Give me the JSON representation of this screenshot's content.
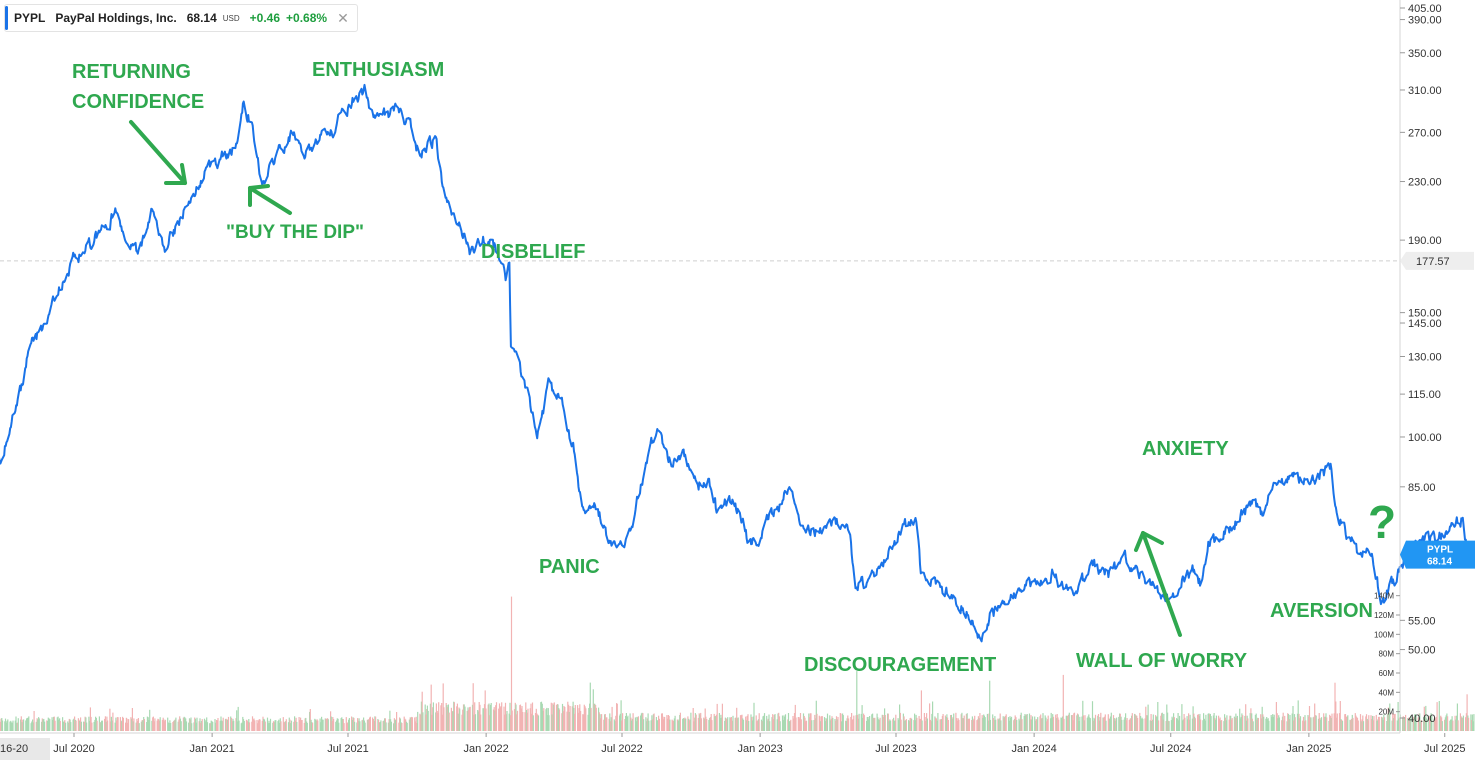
{
  "legend": {
    "symbol": "PYPL",
    "name": "PayPal Holdings, Inc.",
    "price": "68.14",
    "currency": "USD",
    "change": "+0.46",
    "change_pct": "+0.68%",
    "close_glyph": "✕"
  },
  "colors": {
    "line": "#1a73e8",
    "annotation": "#2fa84f",
    "volume_up": "#a8d9b2",
    "volume_down": "#f2b3b3",
    "price_tag": "#2196f3"
  },
  "chart_data": {
    "type": "line",
    "log_scale": true,
    "ylim": [
      38,
      420
    ],
    "y_ticks": [
      405,
      390,
      350,
      310,
      270,
      230,
      190,
      150,
      145,
      130,
      115,
      100,
      85,
      55,
      50,
      40
    ],
    "y_tick_labels": [
      "405.00",
      "390.00",
      "350.00",
      "310.00",
      "270.00",
      "230.00",
      "190.00",
      "150.00",
      "145.00",
      "130.00",
      "115.00",
      "100.00",
      "85.00",
      "55.00",
      "50.00",
      "40.00"
    ],
    "x_tick_labels": [
      "16-20",
      "Jul 2020",
      "Jan 2021",
      "Jul 2021",
      "Jan 2022",
      "Jul 2022",
      "Jan 2023",
      "Jul 2023",
      "Jan 2024",
      "Jul 2024",
      "Jan 2025",
      "Jul 2025"
    ],
    "x_tick_dates": [
      "2020-03-16",
      "2020-07-01",
      "2021-01-01",
      "2021-07-01",
      "2022-01-01",
      "2022-07-01",
      "2023-01-01",
      "2023-07-01",
      "2024-01-01",
      "2024-07-01",
      "2025-01-01",
      "2025-07-01"
    ],
    "x_range": [
      "2020-03-16",
      "2025-10-15"
    ],
    "reference_line": {
      "value": 177.57,
      "label": "177.57"
    },
    "last_price": {
      "value": 68.14,
      "label_symbol": "PYPL",
      "label_value": "68.14"
    },
    "series": [
      {
        "values": [
          [
            "2020-03-16",
            97
          ],
          [
            "2020-03-26",
            92
          ],
          [
            "2020-04-15",
            110
          ],
          [
            "2020-05-05",
            135
          ],
          [
            "2020-05-20",
            142
          ],
          [
            "2020-06-10",
            160
          ],
          [
            "2020-07-01",
            178
          ],
          [
            "2020-07-20",
            187
          ],
          [
            "2020-08-10",
            196
          ],
          [
            "2020-08-25",
            208
          ],
          [
            "2020-09-10",
            188
          ],
          [
            "2020-09-25",
            183
          ],
          [
            "2020-10-12",
            209
          ],
          [
            "2020-10-30",
            187
          ],
          [
            "2020-11-15",
            198
          ],
          [
            "2020-12-05",
            219
          ],
          [
            "2020-12-28",
            240
          ],
          [
            "2021-01-10",
            246
          ],
          [
            "2021-02-01",
            258
          ],
          [
            "2021-02-12",
            298
          ],
          [
            "2021-02-25",
            272
          ],
          [
            "2021-03-08",
            230
          ],
          [
            "2021-03-25",
            245
          ],
          [
            "2021-04-15",
            268
          ],
          [
            "2021-05-05",
            252
          ],
          [
            "2021-05-20",
            260
          ],
          [
            "2021-06-10",
            272
          ],
          [
            "2021-06-25",
            290
          ],
          [
            "2021-07-10",
            300
          ],
          [
            "2021-07-23",
            308
          ],
          [
            "2021-08-05",
            282
          ],
          [
            "2021-08-20",
            285
          ],
          [
            "2021-09-05",
            290
          ],
          [
            "2021-09-20",
            278
          ],
          [
            "2021-10-05",
            250
          ],
          [
            "2021-10-25",
            265
          ],
          [
            "2021-11-05",
            225
          ],
          [
            "2021-11-25",
            200
          ],
          [
            "2021-12-10",
            185
          ],
          [
            "2021-12-28",
            190
          ],
          [
            "2022-01-12",
            185
          ],
          [
            "2022-01-28",
            168
          ],
          [
            "2022-02-01",
            176
          ],
          [
            "2022-02-03",
            135
          ],
          [
            "2022-02-20",
            120
          ],
          [
            "2022-03-10",
            100
          ],
          [
            "2022-03-25",
            118
          ],
          [
            "2022-04-10",
            115
          ],
          [
            "2022-04-28",
            95
          ],
          [
            "2022-05-10",
            78
          ],
          [
            "2022-05-25",
            82
          ],
          [
            "2022-06-10",
            72
          ],
          [
            "2022-06-25",
            70
          ],
          [
            "2022-07-05",
            70
          ],
          [
            "2022-07-20",
            80
          ],
          [
            "2022-08-05",
            95
          ],
          [
            "2022-08-15",
            102
          ],
          [
            "2022-09-05",
            92
          ],
          [
            "2022-09-20",
            95
          ],
          [
            "2022-10-10",
            85
          ],
          [
            "2022-10-25",
            88
          ],
          [
            "2022-11-05",
            78
          ],
          [
            "2022-11-25",
            82
          ],
          [
            "2022-12-15",
            72
          ],
          [
            "2022-12-30",
            71
          ],
          [
            "2023-01-15",
            78
          ],
          [
            "2023-02-10",
            84
          ],
          [
            "2023-02-25",
            76
          ],
          [
            "2023-03-15",
            74
          ],
          [
            "2023-04-10",
            76
          ],
          [
            "2023-04-30",
            74
          ],
          [
            "2023-05-08",
            62
          ],
          [
            "2023-05-25",
            62
          ],
          [
            "2023-06-15",
            66
          ],
          [
            "2023-07-10",
            75
          ],
          [
            "2023-07-28",
            76
          ],
          [
            "2023-08-03",
            65
          ],
          [
            "2023-08-20",
            62
          ],
          [
            "2023-09-10",
            60
          ],
          [
            "2023-09-25",
            58
          ],
          [
            "2023-10-10",
            55
          ],
          [
            "2023-10-25",
            52
          ],
          [
            "2023-11-05",
            56
          ],
          [
            "2023-11-25",
            58
          ],
          [
            "2023-12-15",
            61
          ],
          [
            "2024-01-05",
            62
          ],
          [
            "2024-01-25",
            64
          ],
          [
            "2024-02-10",
            60
          ],
          [
            "2024-02-28",
            61
          ],
          [
            "2024-03-20",
            66
          ],
          [
            "2024-04-10",
            64
          ],
          [
            "2024-04-30",
            68
          ],
          [
            "2024-05-20",
            63
          ],
          [
            "2024-06-10",
            62
          ],
          [
            "2024-06-30",
            58
          ],
          [
            "2024-07-15",
            62
          ],
          [
            "2024-07-30",
            65
          ],
          [
            "2024-08-10",
            62
          ],
          [
            "2024-08-20",
            70
          ],
          [
            "2024-09-05",
            72
          ],
          [
            "2024-09-25",
            76
          ],
          [
            "2024-10-15",
            80
          ],
          [
            "2024-10-30",
            78
          ],
          [
            "2024-11-15",
            84
          ],
          [
            "2024-12-05",
            88
          ],
          [
            "2024-12-25",
            86
          ],
          [
            "2025-01-10",
            88
          ],
          [
            "2025-01-30",
            90
          ],
          [
            "2025-02-05",
            78
          ],
          [
            "2025-02-20",
            73
          ],
          [
            "2025-03-10",
            68
          ],
          [
            "2025-03-25",
            68
          ],
          [
            "2025-04-08",
            58
          ],
          [
            "2025-04-25",
            63
          ],
          [
            "2025-05-10",
            68
          ],
          [
            "2025-05-30",
            72
          ],
          [
            "2025-06-20",
            72
          ],
          [
            "2025-07-10",
            74
          ],
          [
            "2025-07-25",
            77
          ],
          [
            "2025-07-30",
            70
          ],
          [
            "2025-08-15",
            68
          ],
          [
            "2025-08-30",
            70
          ],
          [
            "2025-09-15",
            66
          ],
          [
            "2025-09-30",
            68
          ],
          [
            "2025-10-10",
            68.14
          ]
        ]
      }
    ],
    "volume": {
      "y_ticks": [
        20,
        40,
        60,
        80,
        100,
        120,
        140
      ],
      "y_tick_labels": [
        "20M",
        "40M",
        "60M",
        "80M",
        "100M",
        "120M",
        "140M"
      ],
      "spikes": [
        [
          "2021-10-19",
          48
        ],
        [
          "2022-02-03",
          139
        ],
        [
          "2022-11-04",
          28
        ],
        [
          "2023-05-09",
          62
        ],
        [
          "2023-08-03",
          42
        ],
        [
          "2023-11-02",
          52
        ],
        [
          "2024-02-08",
          58
        ],
        [
          "2024-10-30",
          25
        ],
        [
          "2025-02-04",
          50
        ],
        [
          "2025-04-29",
          30
        ],
        [
          "2025-07-30",
          38
        ]
      ]
    }
  },
  "annotations": {
    "returning_confidence_1": "RETURNING",
    "returning_confidence_2": "CONFIDENCE",
    "enthusiasm": "ENTHUSIASM",
    "buy_the_dip": "\"BUY THE DIP\"",
    "disbelief": "DISBELIEF",
    "panic": "PANIC",
    "discouragement": "DISCOURAGEMENT",
    "anxiety": "ANXIETY",
    "wall_of_worry": "WALL OF WORRY",
    "aversion": "AVERSION",
    "question": "?"
  }
}
